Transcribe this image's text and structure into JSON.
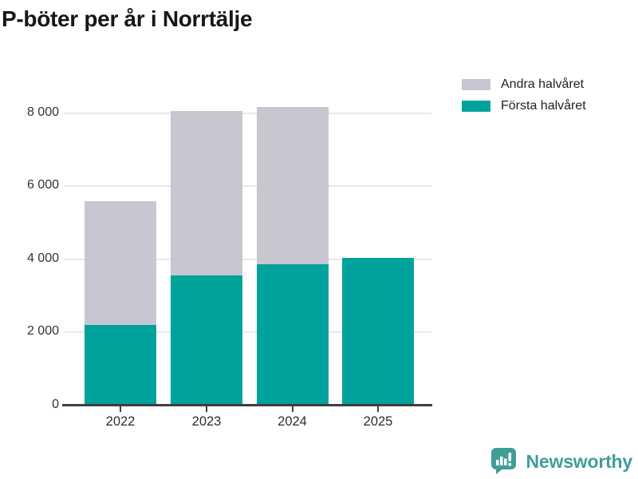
{
  "title": "P-böter per år i Norrtälje",
  "legend": {
    "items": [
      {
        "label": "Andra halvåret",
        "color": "#c8c6d1"
      },
      {
        "label": "Första halvåret",
        "color": "#00a39b"
      }
    ]
  },
  "chart_data": {
    "type": "bar",
    "stacked": true,
    "title": "P-böter per år i Norrtälje",
    "categories": [
      "2022",
      "2023",
      "2024",
      "2025"
    ],
    "series": [
      {
        "name": "Första halvåret",
        "color": "#00a39b",
        "values": [
          2210,
          3560,
          3870,
          4050
        ]
      },
      {
        "name": "Andra halvåret",
        "color": "#c8c6d1",
        "values": [
          3390,
          4500,
          4290,
          0
        ]
      }
    ],
    "xlabel": "",
    "ylabel": "",
    "ylim": [
      0,
      8470
    ],
    "yticks": [
      0,
      2000,
      4000,
      6000,
      8000
    ],
    "ytick_labels": [
      "0",
      "2 000",
      "4 000",
      "6 000",
      "8 000"
    ],
    "grid": true,
    "legend_position": "top-right"
  },
  "branding": {
    "name": "Newsworthy",
    "logo_icon": "newsworthy-speech-bubble-chart-icon",
    "color": "#3f9e98"
  },
  "colors": {
    "first_half": "#00a39b",
    "second_half": "#c8c6d1",
    "grid": "#e9e9ec",
    "axis": "#3f3f3f",
    "text": "#333333"
  }
}
